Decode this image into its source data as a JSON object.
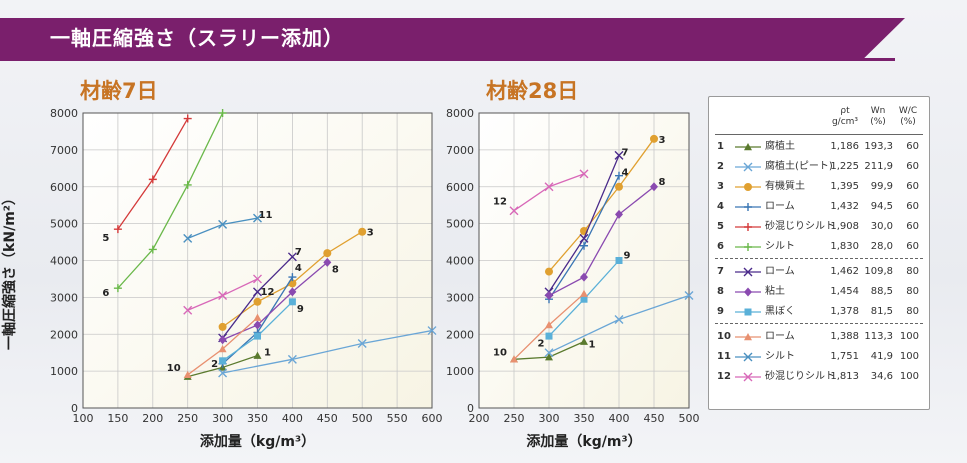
{
  "banner": {
    "title": "一軸圧縮強さ（スラリー添加）"
  },
  "chart_data": [
    {
      "type": "line",
      "title": "材齢7日",
      "xlabel": "添加量（kg/m³）",
      "ylabel": "一軸圧縮強さ（kN/m²）",
      "xlim": [
        100,
        600
      ],
      "ylim": [
        0,
        8000
      ],
      "xticks": [
        100,
        150,
        200,
        250,
        300,
        350,
        400,
        450,
        500,
        550,
        600
      ],
      "yticks": [
        0,
        1000,
        2000,
        3000,
        4000,
        5000,
        6000,
        7000,
        8000
      ],
      "series": [
        {
          "id": "1",
          "x": [
            250,
            300,
            350
          ],
          "y": [
            850,
            1100,
            1420
          ]
        },
        {
          "id": "2",
          "x": [
            300,
            400,
            500,
            600
          ],
          "y": [
            950,
            1320,
            1750,
            2100
          ]
        },
        {
          "id": "3",
          "x": [
            300,
            350,
            400,
            450,
            500
          ],
          "y": [
            2200,
            2880,
            3380,
            4200,
            4780
          ]
        },
        {
          "id": "4",
          "x": [
            300,
            350,
            400
          ],
          "y": [
            1200,
            2050,
            3550
          ]
        },
        {
          "id": "5",
          "x": [
            150,
            200,
            250
          ],
          "y": [
            4850,
            6200,
            7850
          ]
        },
        {
          "id": "6",
          "x": [
            150,
            200,
            250,
            300
          ],
          "y": [
            3250,
            4300,
            6050,
            8000
          ]
        },
        {
          "id": "7",
          "x": [
            300,
            350,
            400
          ],
          "y": [
            1900,
            3150,
            4100
          ]
        },
        {
          "id": "8",
          "x": [
            300,
            350,
            400,
            450
          ],
          "y": [
            1850,
            2250,
            3150,
            3950
          ]
        },
        {
          "id": "9",
          "x": [
            300,
            350,
            400
          ],
          "y": [
            1280,
            1950,
            2880
          ]
        },
        {
          "id": "10",
          "x": [
            250,
            300,
            350
          ],
          "y": [
            900,
            1600,
            2450
          ]
        },
        {
          "id": "11",
          "x": [
            250,
            300,
            350
          ],
          "y": [
            4600,
            4980,
            5150
          ]
        },
        {
          "id": "12",
          "x": [
            250,
            300,
            350
          ],
          "y": [
            2650,
            3050,
            3500
          ]
        }
      ]
    },
    {
      "type": "line",
      "title": "材齢28日",
      "xlabel": "添加量（kg/m³）",
      "ylabel": "",
      "xlim": [
        200,
        500
      ],
      "ylim": [
        0,
        8000
      ],
      "xticks": [
        200,
        250,
        300,
        350,
        400,
        450,
        500
      ],
      "yticks": [
        0,
        1000,
        2000,
        3000,
        4000,
        5000,
        6000,
        7000,
        8000
      ],
      "series": [
        {
          "id": "1",
          "x": [
            250,
            300,
            350
          ],
          "y": [
            1320,
            1380,
            1800
          ]
        },
        {
          "id": "2",
          "x": [
            300,
            400,
            500
          ],
          "y": [
            1500,
            2400,
            3050
          ]
        },
        {
          "id": "3",
          "x": [
            300,
            350,
            400,
            450
          ],
          "y": [
            3700,
            4800,
            6000,
            7300
          ]
        },
        {
          "id": "4",
          "x": [
            300,
            350,
            400
          ],
          "y": [
            2950,
            4400,
            6300
          ]
        },
        {
          "id": "7",
          "x": [
            300,
            350,
            400
          ],
          "y": [
            3150,
            4600,
            6850
          ]
        },
        {
          "id": "8",
          "x": [
            300,
            350,
            400,
            450
          ],
          "y": [
            3050,
            3550,
            5250,
            6000
          ]
        },
        {
          "id": "9",
          "x": [
            300,
            350,
            400
          ],
          "y": [
            1950,
            2950,
            4000
          ]
        },
        {
          "id": "10",
          "x": [
            250,
            300,
            350
          ],
          "y": [
            1320,
            2250,
            3100
          ]
        },
        {
          "id": "12",
          "x": [
            250,
            300,
            350
          ],
          "y": [
            5350,
            6000,
            6350
          ]
        }
      ]
    }
  ],
  "styles": {
    "1": {
      "color": "#5a7a2e",
      "marker": "triangle"
    },
    "2": {
      "color": "#6aa6d6",
      "marker": "x"
    },
    "3": {
      "color": "#e0a030",
      "marker": "circle"
    },
    "4": {
      "color": "#3a76b4",
      "marker": "plus"
    },
    "5": {
      "color": "#d43a3a",
      "marker": "plus"
    },
    "6": {
      "color": "#6ab84a",
      "marker": "plus"
    },
    "7": {
      "color": "#4a2a8a",
      "marker": "x"
    },
    "8": {
      "color": "#8a4ab0",
      "marker": "diamond"
    },
    "9": {
      "color": "#5ab0d8",
      "marker": "square"
    },
    "10": {
      "color": "#e89070",
      "marker": "triangle"
    },
    "11": {
      "color": "#4a90c0",
      "marker": "x"
    },
    "12": {
      "color": "#d868b8",
      "marker": "x"
    }
  },
  "legend": {
    "headers": {
      "rho": "ρt",
      "rho_unit": "g/cm³",
      "wn": "Wn",
      "wn_unit": "(%)",
      "wc": "W/C",
      "wc_unit": "(%)"
    },
    "rows": [
      {
        "no": "1",
        "name": "腐植土",
        "rho": "1,186",
        "wn": "193,3",
        "wc": "60"
      },
      {
        "no": "2",
        "name": "腐植土(ピート)",
        "rho": "1,225",
        "wn": "211,9",
        "wc": "60"
      },
      {
        "no": "3",
        "name": "有機質土",
        "rho": "1,395",
        "wn": "99,9",
        "wc": "60"
      },
      {
        "no": "4",
        "name": "ローム",
        "rho": "1,432",
        "wn": "94,5",
        "wc": "60"
      },
      {
        "no": "5",
        "name": "砂混じりシルト",
        "rho": "1,908",
        "wn": "30,0",
        "wc": "60"
      },
      {
        "no": "6",
        "name": "シルト",
        "rho": "1,830",
        "wn": "28,0",
        "wc": "60"
      },
      {
        "no": "7",
        "name": "ローム",
        "rho": "1,462",
        "wn": "109,8",
        "wc": "80"
      },
      {
        "no": "8",
        "name": "粘土",
        "rho": "1,454",
        "wn": "88,5",
        "wc": "80"
      },
      {
        "no": "9",
        "name": "黒ぼく",
        "rho": "1,378",
        "wn": "81,5",
        "wc": "80"
      },
      {
        "no": "10",
        "name": "ローム",
        "rho": "1,388",
        "wn": "113,3",
        "wc": "100"
      },
      {
        "no": "11",
        "name": "シルト",
        "rho": "1,751",
        "wn": "41,9",
        "wc": "100"
      },
      {
        "no": "12",
        "name": "砂混じりシルト",
        "rho": "1,813",
        "wn": "34,6",
        "wc": "100"
      }
    ]
  }
}
